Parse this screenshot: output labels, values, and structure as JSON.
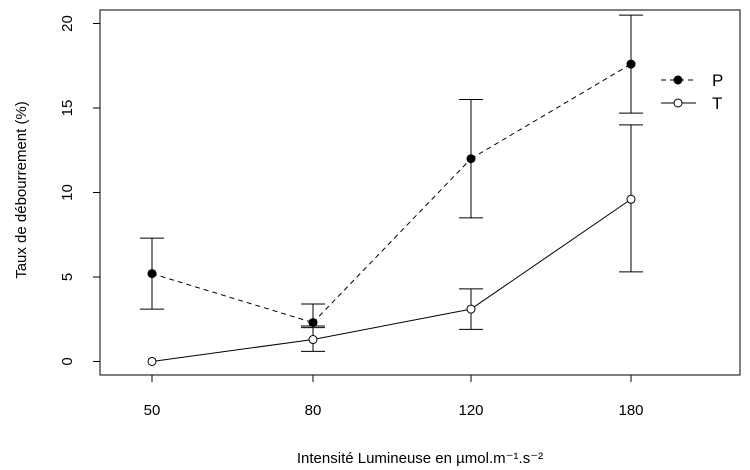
{
  "chart_data": {
    "type": "line",
    "title": "",
    "xlabel": "Intensité Lumineuse en µmol.m⁻¹.s⁻²",
    "ylabel": "Taux de débourrement (%)",
    "categories": [
      "50",
      "80",
      "120",
      "180"
    ],
    "ylim": [
      -0.8,
      20.8
    ],
    "yticks": [
      0,
      5,
      10,
      15,
      20
    ],
    "grid": false,
    "legend_position": "top-right",
    "series": [
      {
        "name": "P",
        "line_style": "dashed",
        "marker": "filled-circle",
        "color": "#000000",
        "values": [
          5.2,
          2.3,
          12.0,
          17.6
        ],
        "error_low": [
          3.1,
          2.1,
          8.5,
          14.7
        ],
        "error_high": [
          7.3,
          3.4,
          15.5,
          20.5
        ]
      },
      {
        "name": "T",
        "line_style": "solid",
        "marker": "open-circle",
        "color": "#000000",
        "values": [
          0.0,
          1.3,
          3.1,
          9.6
        ],
        "error_low": [
          0.0,
          0.6,
          1.9,
          5.3
        ],
        "error_high": [
          0.0,
          2.0,
          4.3,
          14.0
        ]
      }
    ]
  }
}
